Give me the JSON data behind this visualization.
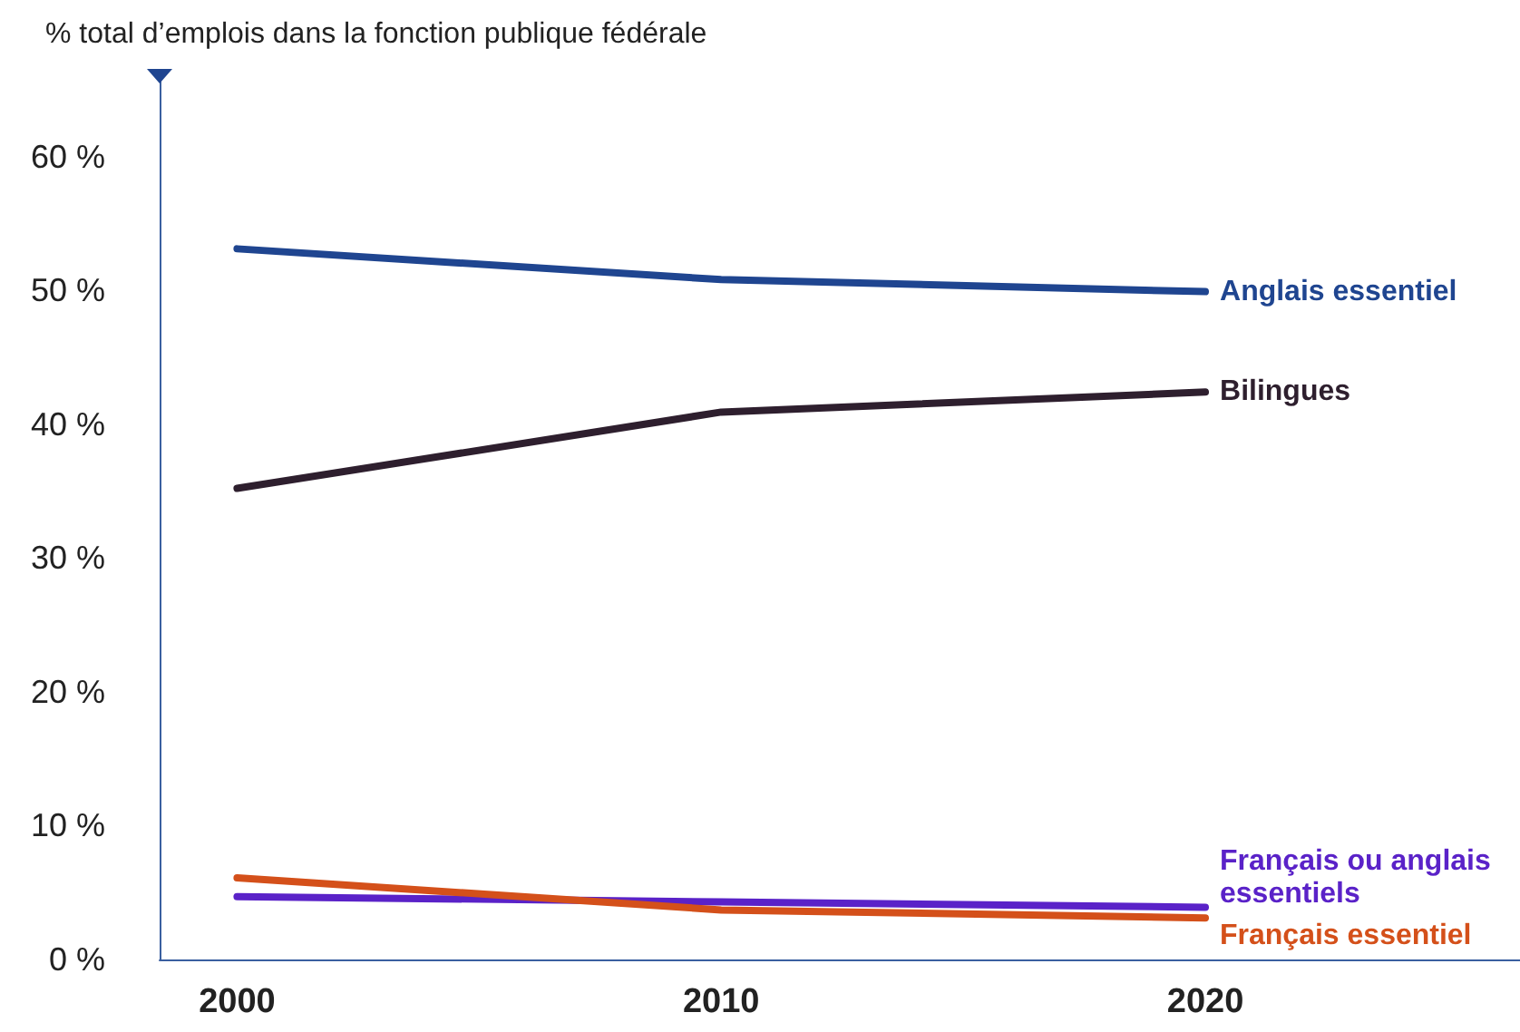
{
  "chart_data": {
    "type": "line",
    "ylabel": "% total d’emplois dans la fonction publique fédérale",
    "x": [
      2000,
      2010,
      2020
    ],
    "xlim": [
      1998.4,
      2026.5
    ],
    "xticks": [
      2000,
      2010,
      2020
    ],
    "ylim": [
      0,
      66
    ],
    "yticks": [
      {
        "value": 0,
        "label": "0 %"
      },
      {
        "value": 10,
        "label": "10 %"
      },
      {
        "value": 20,
        "label": "20 %"
      },
      {
        "value": 30,
        "label": "30 %"
      },
      {
        "value": 40,
        "label": "40 %"
      },
      {
        "value": 50,
        "label": "50 %"
      },
      {
        "value": 60,
        "label": "60 %"
      }
    ],
    "series": [
      {
        "name": "Anglais essentiel",
        "color": "#1f4590",
        "values": [
          53.1,
          50.8,
          49.9
        ]
      },
      {
        "name": "Bilingues",
        "color": "#2e1f2e",
        "values": [
          35.2,
          40.9,
          42.4
        ]
      },
      {
        "name": "Français ou anglais essentiels",
        "color": "#5a22c8",
        "values": [
          4.7,
          4.3,
          3.9
        ]
      },
      {
        "name": "Français essentiel",
        "color": "#d4501a",
        "values": [
          6.1,
          3.7,
          3.1
        ]
      }
    ],
    "grid": false,
    "legend": false,
    "marker": "none",
    "line_style": "solid"
  }
}
